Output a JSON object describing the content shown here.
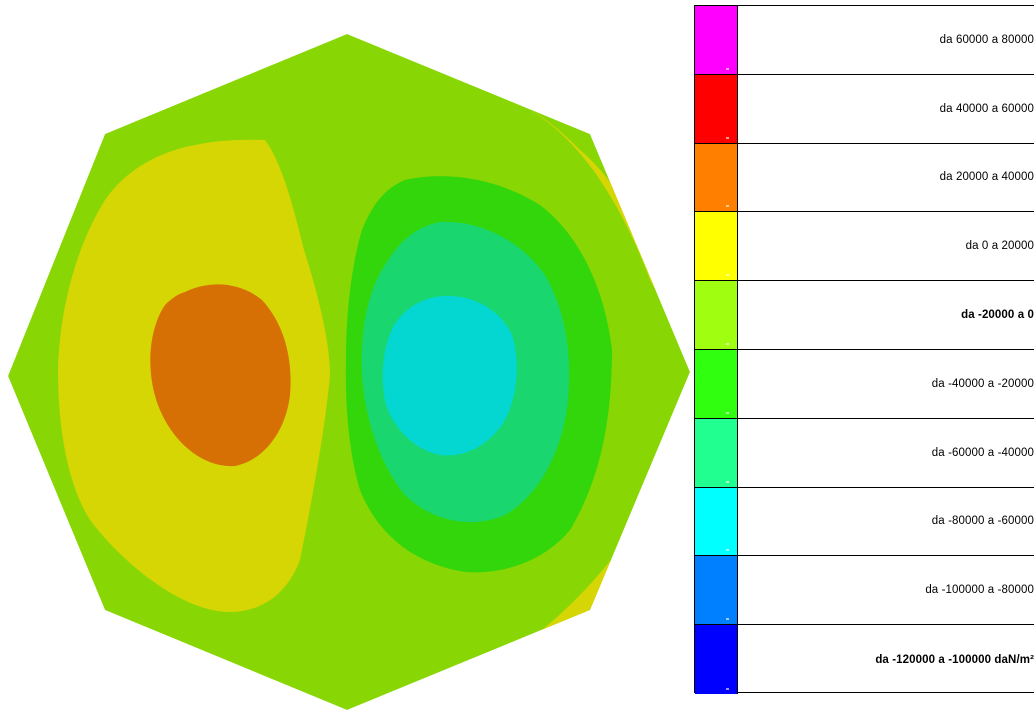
{
  "legend": {
    "items": [
      {
        "label": "da 60000 a 80000",
        "color": "#ff00ff",
        "bold": false
      },
      {
        "label": "da 40000 a 60000",
        "color": "#ff0000",
        "bold": false
      },
      {
        "label": "da 20000 a 40000",
        "color": "#ff8000",
        "bold": false
      },
      {
        "label": "da 0 a 20000",
        "color": "#ffff00",
        "bold": false
      },
      {
        "label": "da -20000 a 0",
        "color": "#a0ff10",
        "bold": true
      },
      {
        "label": "da -40000 a -20000",
        "color": "#30ff10",
        "bold": false
      },
      {
        "label": "da -60000 a -40000",
        "color": "#20ff90",
        "bold": false
      },
      {
        "label": "da -80000 a -60000",
        "color": "#00ffff",
        "bold": false
      },
      {
        "label": "da -100000 a -80000",
        "color": "#0080ff",
        "bold": false
      },
      {
        "label": "da -120000 a -100000 daN/m²",
        "color": "#0000ff",
        "bold": true
      }
    ]
  },
  "contour_colors": {
    "base": "#88d604",
    "edge": "#d6d604",
    "left_outer": "#d6d604",
    "left_inner": "#d67004",
    "right_outer": "#33d60b",
    "right_mid": "#1ad66e",
    "right_inner": "#04d6d2"
  }
}
